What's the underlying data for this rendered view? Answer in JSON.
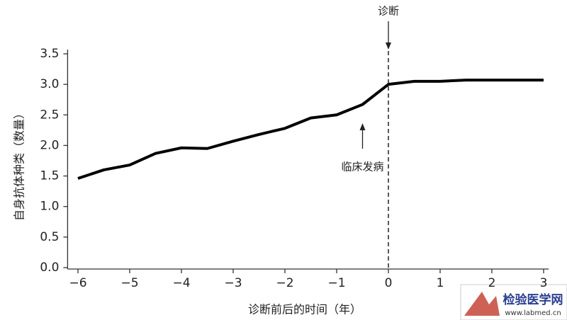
{
  "chart_data": {
    "type": "line",
    "x_label": "诊断前后的时间（年）",
    "y_label": "自身抗体种类（数量）",
    "x": [
      -6,
      -5.5,
      -5,
      -4.5,
      -4,
      -3.5,
      -3,
      -2.5,
      -2,
      -1.5,
      -1,
      -0.5,
      0,
      0.5,
      1,
      1.5,
      2,
      2.5,
      3
    ],
    "series": [
      {
        "color": "#000000",
        "values": [
          1.46,
          1.6,
          1.68,
          1.87,
          1.96,
          1.95,
          2.07,
          2.18,
          2.28,
          2.45,
          2.5,
          2.67,
          3.0,
          3.05,
          3.05,
          3.07,
          3.07,
          3.07,
          3.07
        ]
      }
    ],
    "xlim": [
      -6.2,
      3.1
    ],
    "ylim": [
      0,
      3.5
    ],
    "xticks": [
      {
        "value": -6,
        "label": "−6"
      },
      {
        "value": -5,
        "label": "−5"
      },
      {
        "value": -4,
        "label": "−4"
      },
      {
        "value": -3,
        "label": "−3"
      },
      {
        "value": -2,
        "label": "−2"
      },
      {
        "value": -1,
        "label": "−1"
      },
      0,
      1,
      2,
      3
    ],
    "yticks": [
      {
        "value": 0,
        "label": "0.0"
      },
      0.5,
      {
        "value": 1,
        "label": "1.0"
      },
      1.5,
      {
        "value": 2,
        "label": "2.0"
      },
      2.5,
      {
        "value": 3,
        "label": "3.0"
      },
      3.5
    ],
    "grid": false,
    "annotations": [
      {
        "text": "诊断",
        "x": 0
      },
      {
        "text": "临床发病",
        "x": -0.5
      }
    ]
  },
  "watermark": {
    "title": "检验医学网",
    "url": "www.labmed.cn"
  }
}
